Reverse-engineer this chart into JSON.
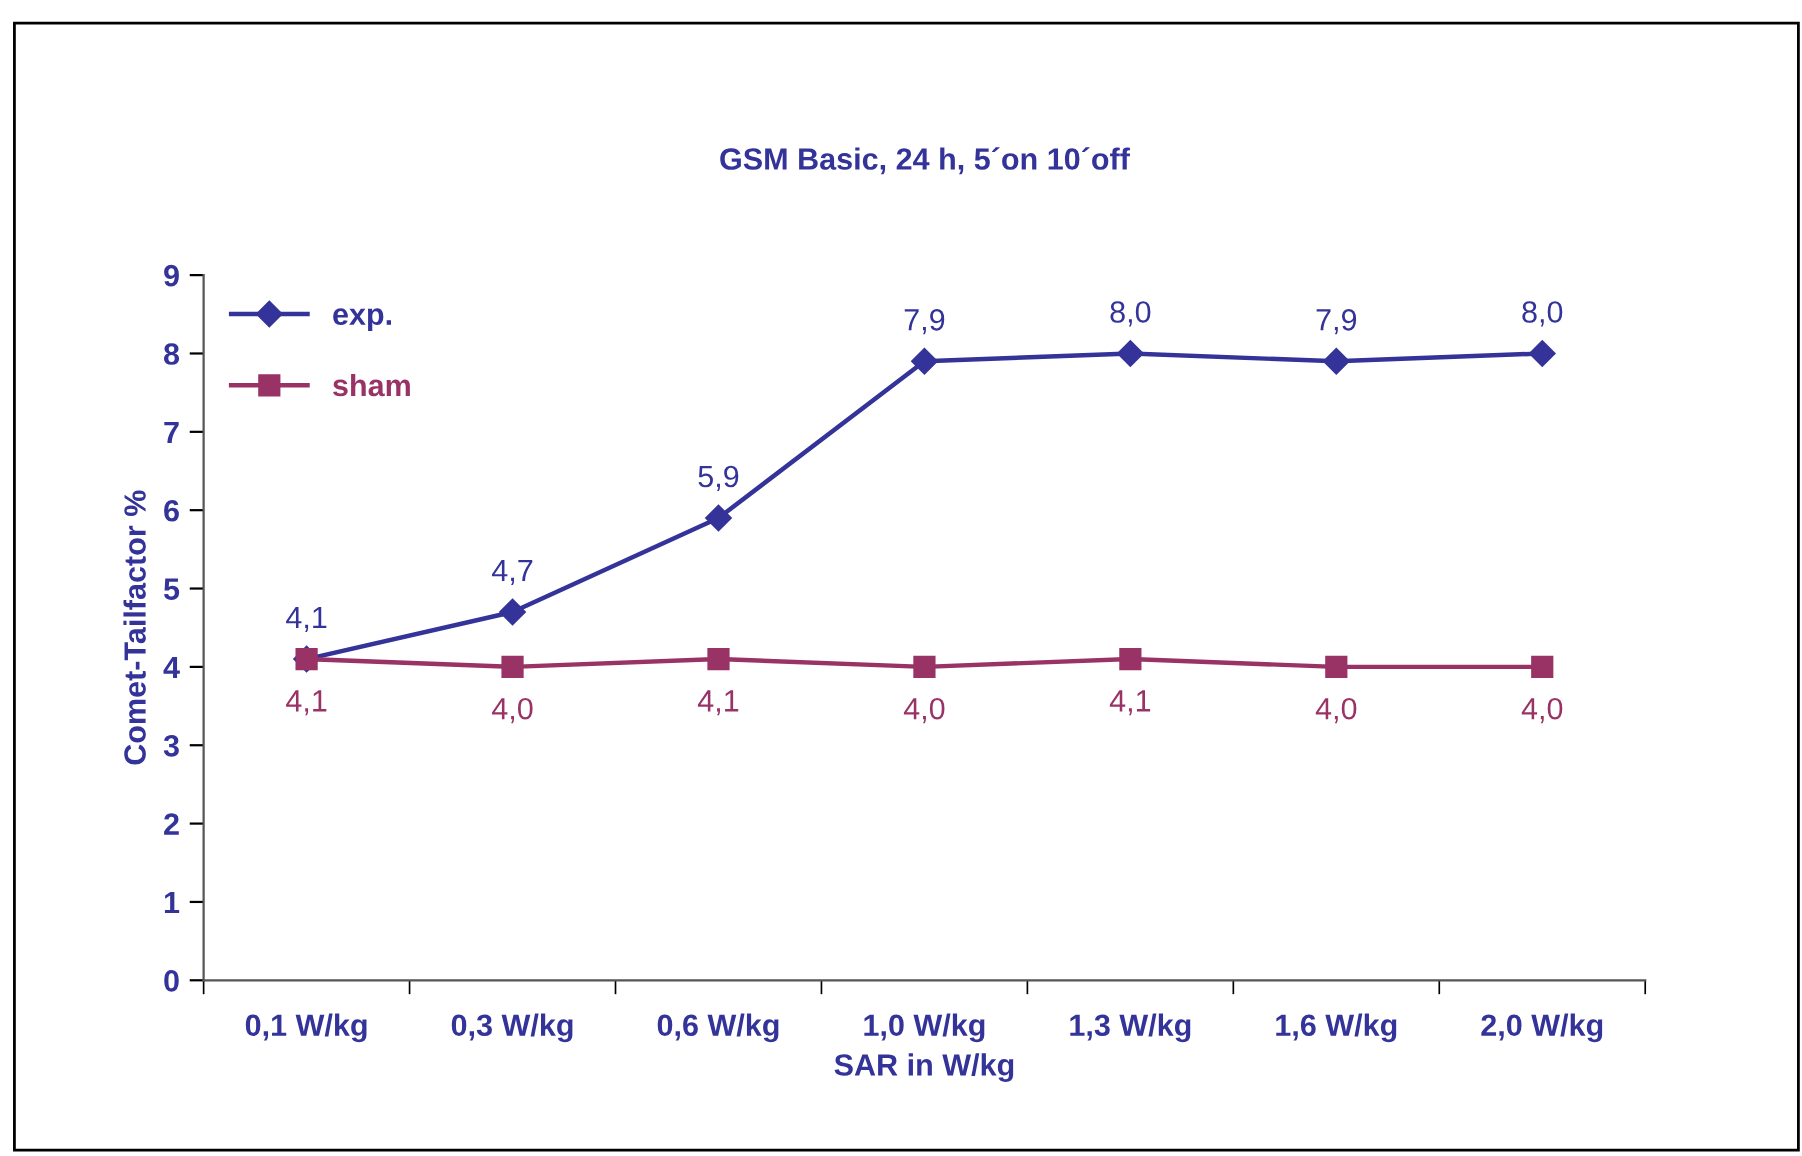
{
  "chart_data": {
    "type": "line",
    "title": "GSM Basic, 24 h, 5´on 10´off",
    "xlabel": "SAR in W/kg",
    "ylabel": "Comet-Tailfactor %",
    "categories": [
      "0,1 W/kg",
      "0,3 W/kg",
      "0,6 W/kg",
      "1,0 W/kg",
      "1,3 W/kg",
      "1,6 W/kg",
      "2,0 W/kg"
    ],
    "series": [
      {
        "name": "exp.",
        "color": "#333399",
        "marker": "diamond",
        "values": [
          4.1,
          4.7,
          5.9,
          7.9,
          8.0,
          7.9,
          8.0
        ],
        "value_labels": [
          "4,1",
          "4,7",
          "5,9",
          "7,9",
          "8,0",
          "7,9",
          "8,0"
        ]
      },
      {
        "name": "sham",
        "color": "#993366",
        "marker": "square",
        "values": [
          4.1,
          4.0,
          4.1,
          4.0,
          4.1,
          4.0,
          4.0
        ],
        "value_labels": [
          "4,1",
          "4,0",
          "4,1",
          "4,0",
          "4,1",
          "4,0",
          "4,0"
        ]
      }
    ],
    "ylim": [
      0,
      9
    ],
    "yticks": [
      0,
      1,
      2,
      3,
      4,
      5,
      6,
      7,
      8,
      9
    ],
    "grid": false,
    "legend": "top left",
    "line_style": "solid"
  }
}
